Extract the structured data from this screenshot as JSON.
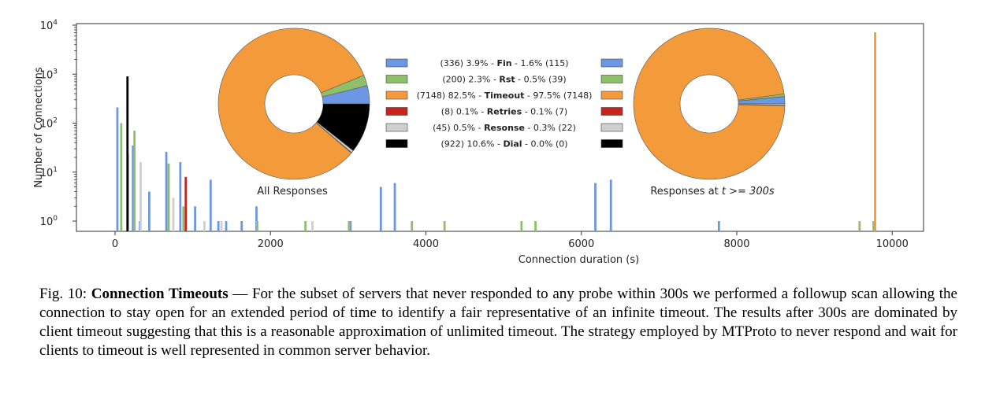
{
  "chart_data": [
    {
      "type": "bar",
      "subtype": "histogram",
      "xlabel": "Connection duration (s)",
      "ylabel": "Number of Connections",
      "xlim": [
        -500,
        10400
      ],
      "ylim": [
        0.7,
        14000
      ],
      "yscale": "log",
      "xticks": [
        "0",
        "2000",
        "4000",
        "6000",
        "8000",
        "10000"
      ],
      "xtick_values": [
        0,
        2000,
        4000,
        6000,
        8000,
        10000
      ],
      "yticks": [
        {
          "base": "10",
          "exp": "0",
          "value": 1
        },
        {
          "base": "10",
          "exp": "1",
          "value": 10
        },
        {
          "base": "10",
          "exp": "2",
          "value": 100
        },
        {
          "base": "10",
          "exp": "3",
          "value": 1000
        },
        {
          "base": "10",
          "exp": "4",
          "value": 10000
        }
      ],
      "grid": false,
      "series": [
        {
          "name": "Fin",
          "color": "#6d97e2",
          "points": [
            [
              30,
              210
            ],
            [
              230,
              35
            ],
            [
              320,
              1
            ],
            [
              440,
              4
            ],
            [
              660,
              26
            ],
            [
              840,
              16
            ],
            [
              1030,
              2
            ],
            [
              1230,
              7
            ],
            [
              1330,
              1
            ],
            [
              1430,
              1
            ],
            [
              1630,
              1
            ],
            [
              1820,
              2
            ],
            [
              3030,
              1
            ],
            [
              3420,
              5
            ],
            [
              3600,
              6
            ],
            [
              6180,
              6
            ],
            [
              6380,
              7
            ],
            [
              7770,
              1
            ]
          ]
        },
        {
          "name": "Rst",
          "color": "#8fbf6a",
          "points": [
            [
              80,
              100
            ],
            [
              250,
              70
            ],
            [
              690,
              15
            ],
            [
              880,
              2
            ],
            [
              1830,
              1
            ],
            [
              2450,
              1
            ],
            [
              3010,
              1
            ],
            [
              3820,
              1
            ],
            [
              4240,
              1
            ],
            [
              5230,
              1
            ],
            [
              5410,
              1
            ],
            [
              9580,
              1
            ],
            [
              9760,
              1
            ]
          ]
        },
        {
          "name": "Timeout",
          "color": "#f39b3a",
          "points": [
            [
              9780,
              7148
            ]
          ]
        },
        {
          "name": "Retries",
          "color": "#c8231c",
          "points": [
            [
              910,
              8
            ]
          ]
        },
        {
          "name": "Resonse",
          "color": "#cfcfcf",
          "points": [
            [
              170,
              23
            ],
            [
              330,
              16
            ],
            [
              750,
              3
            ],
            [
              1150,
              1
            ],
            [
              1370,
              1
            ],
            [
              2540,
              1
            ]
          ]
        },
        {
          "name": "Dial",
          "color": "#000000",
          "points": [
            [
              160,
              900
            ]
          ]
        }
      ]
    },
    {
      "type": "pie",
      "label": "All Responses",
      "donut": true,
      "slices": [
        {
          "name": "Fin",
          "value": 336,
          "color": "#6d97e2"
        },
        {
          "name": "Rst",
          "value": 200,
          "color": "#8fbf6a"
        },
        {
          "name": "Timeout",
          "value": 7148,
          "color": "#f39b3a"
        },
        {
          "name": "Retries",
          "value": 8,
          "color": "#c8231c"
        },
        {
          "name": "Resonse",
          "value": 45,
          "color": "#cfcfcf"
        },
        {
          "name": "Dial",
          "value": 922,
          "color": "#000000"
        }
      ]
    },
    {
      "type": "pie",
      "label_prefix": "Responses at",
      "label_math": "t >= 300s",
      "donut": true,
      "slices": [
        {
          "name": "Fin",
          "value": 115,
          "color": "#6d97e2"
        },
        {
          "name": "Rst",
          "value": 39,
          "color": "#8fbf6a"
        },
        {
          "name": "Timeout",
          "value": 7148,
          "color": "#f39b3a"
        },
        {
          "name": "Retries",
          "value": 7,
          "color": "#c8231c"
        },
        {
          "name": "Resonse",
          "value": 22,
          "color": "#cfcfcf"
        },
        {
          "name": "Dial",
          "value": 0,
          "color": "#000000"
        }
      ]
    }
  ],
  "legend": [
    {
      "left": "(336) 3.9% - ",
      "name": "Fin",
      "right": " - 1.6% (115)",
      "color": "#6d97e2"
    },
    {
      "left": "(200) 2.3% - ",
      "name": "Rst",
      "right": " - 0.5%  (39)",
      "color": "#8fbf6a"
    },
    {
      "left": "(7148) 82.5% - ",
      "name": "Timeout",
      "right": " - 97.5% (7148)",
      "color": "#f39b3a"
    },
    {
      "left": "(8) 0.1% - ",
      "name": "Retries",
      "right": " - 0.1% (7)",
      "color": "#c8231c"
    },
    {
      "left": "(45) 0.5% - ",
      "name": "Resonse",
      "right": " - 0.3% (22)",
      "color": "#cfcfcf"
    },
    {
      "left": "(922) 10.6% - ",
      "name": "Dial",
      "right": " -  0.0%  (0)",
      "color": "#000000"
    }
  ],
  "caption": {
    "fig_label": "Fig. 10: ",
    "title": "Connection Timeouts",
    "text": " — For the subset of servers that never responded to any probe within 300s we performed a followup scan allowing the connection to stay open for an extended period of time to identify a fair representative of an infinite timeout. The results after 300s are dominated by client timeout suggesting that this is a reasonable approximation of unlimited timeout. The strategy employed by MTProto to never respond and wait for clients to timeout is well represented in common server behavior."
  }
}
